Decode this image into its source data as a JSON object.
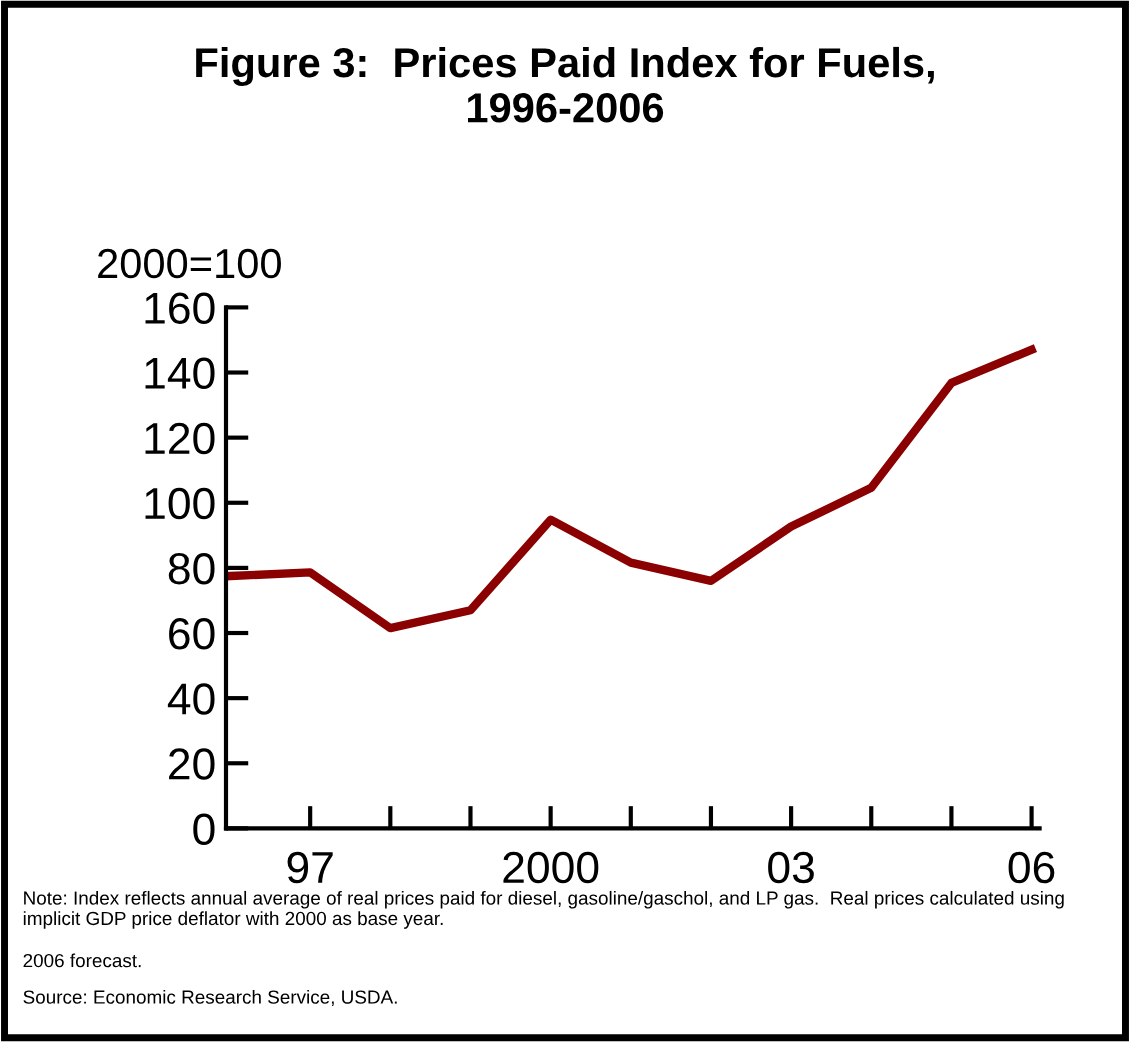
{
  "chart_data": {
    "type": "line",
    "title": "Figure 3:  Prices Paid Index for Fuels,\n1996-2006",
    "ylabel": "2000=100",
    "x": [
      1996,
      1997,
      1998,
      1999,
      2000,
      2001,
      2002,
      2003,
      2004,
      2005,
      2006
    ],
    "series": [
      {
        "color": "#8b0000",
        "values": [
          77.5,
          78.6,
          61.5,
          67,
          94.8,
          81.6,
          76,
          92.7,
          104.6,
          136.8,
          147
        ]
      }
    ],
    "xlim": [
      1995.95,
      2006.1
    ],
    "ylim": [
      0,
      160
    ],
    "xticks": [
      {
        "value": 1997,
        "label": "97"
      },
      {
        "value": 1998,
        "label": null
      },
      {
        "value": 1999,
        "label": null
      },
      {
        "value": 2000,
        "label": "2000"
      },
      {
        "value": 2001,
        "label": null
      },
      {
        "value": 2002,
        "label": null
      },
      {
        "value": 2003,
        "label": "03"
      },
      {
        "value": 2004,
        "label": null
      },
      {
        "value": 2005,
        "label": null
      },
      {
        "value": 2006,
        "label": "06"
      }
    ],
    "yticks": [
      0,
      20,
      40,
      60,
      80,
      100,
      120,
      140,
      160
    ],
    "grid": false,
    "legend": false,
    "marker": "none",
    "line_style": "solid",
    "annotations": [
      "Note: Index reflects annual average of real prices paid for diesel, gasoline/gaschol, and LP gas.  Real prices calculated using\nimplicit GDP price deflator with 2000 as base year.",
      "2006 forecast.",
      "Source: Economic Research Service, USDA."
    ]
  }
}
